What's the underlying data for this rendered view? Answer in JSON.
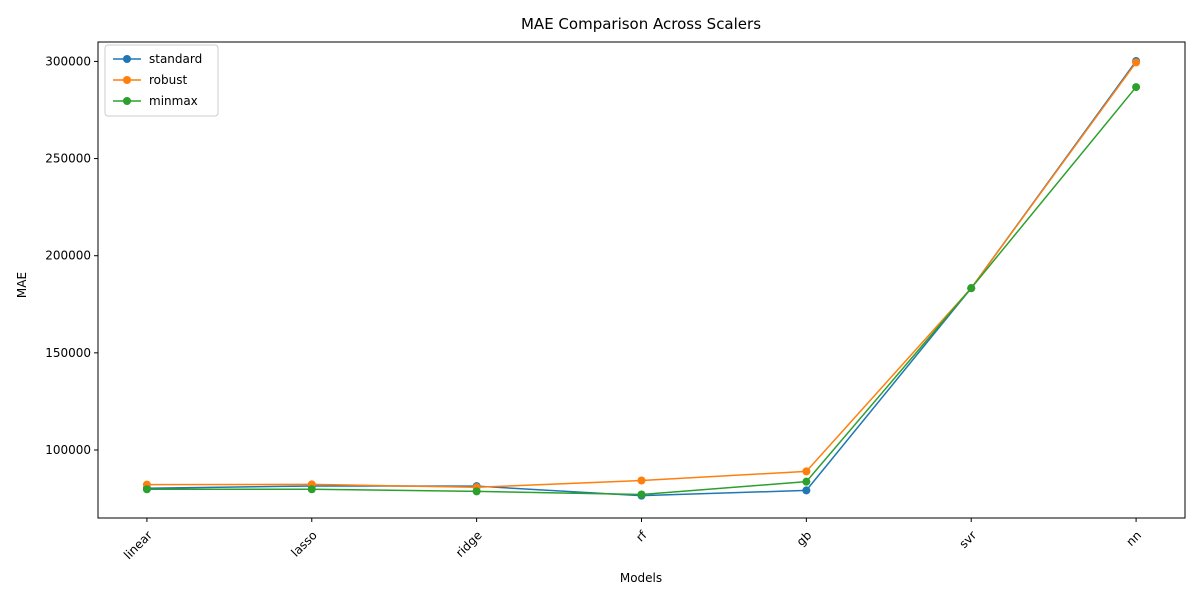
{
  "chart_data": {
    "type": "line",
    "title": "MAE Comparison Across Scalers",
    "xlabel": "Models",
    "ylabel": "MAE",
    "categories": [
      "linear",
      "lasso",
      "ridge",
      "rf",
      "gb",
      "svr",
      "nn"
    ],
    "ylim": [
      65000,
      310000
    ],
    "yticks": [
      100000,
      150000,
      200000,
      250000,
      300000
    ],
    "ytick_labels": [
      "100000",
      "150000",
      "200000",
      "250000",
      "300000"
    ],
    "grid": false,
    "legend_position": "top-left",
    "series": [
      {
        "name": "standard",
        "color": "#1f77b4",
        "marker": "circle",
        "values": [
          80300,
          81500,
          81400,
          76500,
          79200,
          183300,
          300200
        ]
      },
      {
        "name": "robust",
        "color": "#ff7f0e",
        "marker": "circle",
        "values": [
          82200,
          82300,
          80800,
          84300,
          89000,
          183300,
          299500
        ]
      },
      {
        "name": "minmax",
        "color": "#2ca02c",
        "marker": "circle",
        "values": [
          79800,
          79800,
          78700,
          77100,
          83700,
          183300,
          286800
        ]
      }
    ]
  }
}
